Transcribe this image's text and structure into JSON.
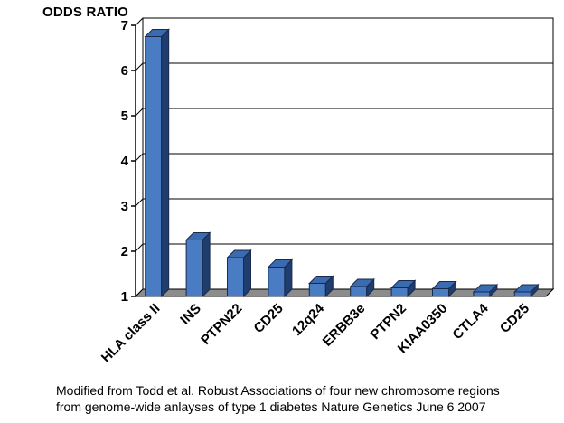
{
  "chart_data": {
    "type": "bar",
    "ylabel": "ODDS RATIO",
    "categories": [
      "HLA class II",
      "INS",
      "PTPN22",
      "CD25",
      "12q24",
      "ERBB3e",
      "PTPN2",
      "KIAA0350",
      "CTLA4",
      "CD25"
    ],
    "values": [
      6.75,
      2.25,
      1.86,
      1.65,
      1.29,
      1.22,
      1.19,
      1.17,
      1.1,
      1.1
    ],
    "ylim": [
      1,
      7
    ],
    "yticks": [
      "1",
      "2",
      "3",
      "4",
      "5",
      "6",
      "7"
    ],
    "grid": true,
    "bar_color": "#4a7cc4",
    "bar_side_color": "#1f3d6e",
    "bar_top_color": "#3a6ab0",
    "floor_color": "#8c8c8c"
  },
  "caption": {
    "line1": "Modified from Todd et al. Robust Associations of four new chromosome regions",
    "line2": "from genome-wide anlayses of type 1 diabetes   Nature Genetics June 6 2007"
  }
}
